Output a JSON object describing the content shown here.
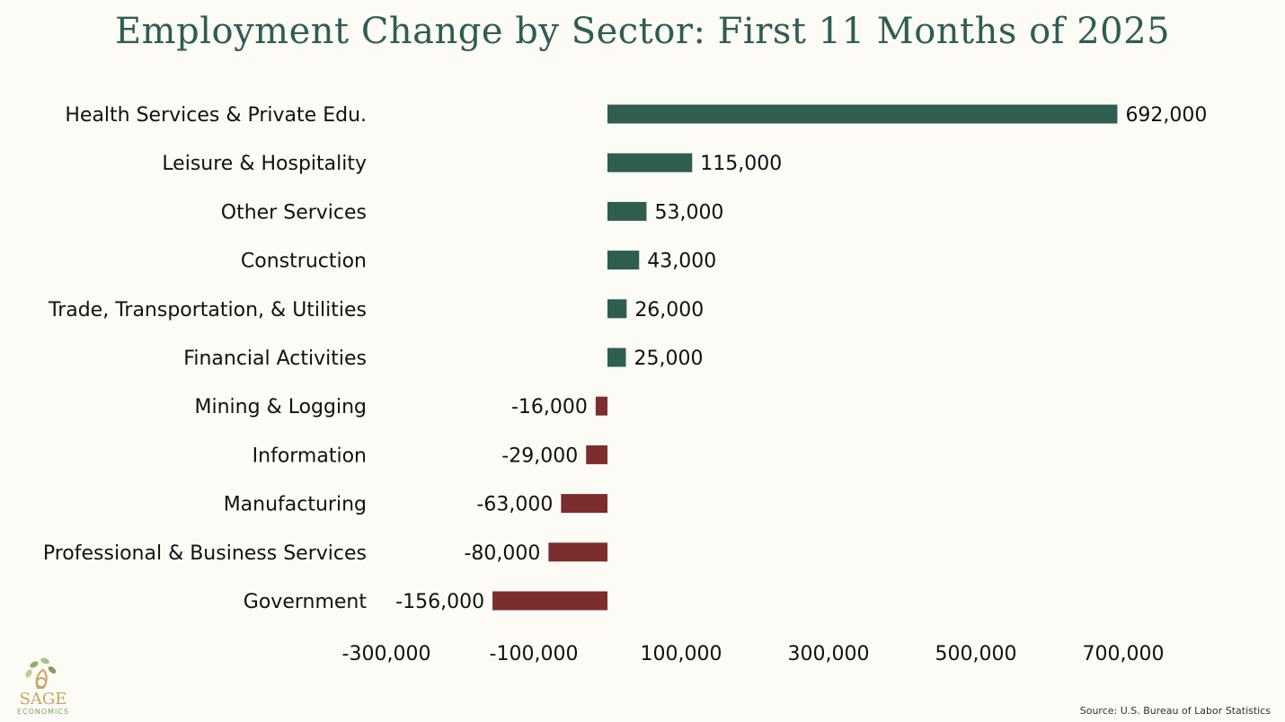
{
  "chart_data": {
    "type": "bar",
    "orientation": "horizontal",
    "title": "Employment Change by Sector: First 11 Months of 2025",
    "categories": [
      "Health Services & Private Edu.",
      "Leisure & Hospitality",
      "Other Services",
      "Construction",
      "Trade, Transportation, & Utilities",
      "Financial Activities",
      "Mining & Logging",
      "Information",
      "Manufacturing",
      "Professional & Business Services",
      "Government"
    ],
    "values": [
      692000,
      115000,
      53000,
      43000,
      26000,
      25000,
      -16000,
      -29000,
      -63000,
      -80000,
      -156000
    ],
    "value_labels": [
      "692,000",
      "115,000",
      "53,000",
      "43,000",
      "26,000",
      "25,000",
      "-16,000",
      "-29,000",
      "-63,000",
      "-80,000",
      "-156,000"
    ],
    "xticks": [
      -300000,
      -100000,
      100000,
      300000,
      500000,
      700000
    ],
    "xtick_labels": [
      "-300,000",
      "-100,000",
      "100,000",
      "300,000",
      "500,000",
      "700,000"
    ],
    "xlim": [
      -300000,
      700000
    ],
    "grid": false,
    "colors": {
      "positive": "#2e5e4e",
      "negative": "#7b2d2f"
    }
  },
  "logo": {
    "name": "SAGE",
    "sub": "ECONOMICS"
  },
  "source": "Source: U.S. Bureau of Labor Statistics"
}
